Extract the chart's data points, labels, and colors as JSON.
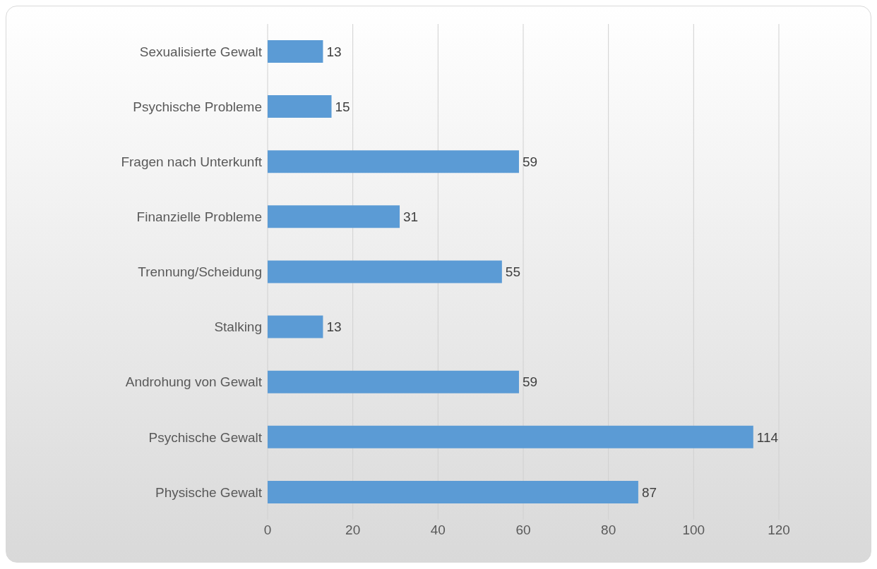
{
  "chart_data": {
    "type": "bar",
    "orientation": "horizontal",
    "categories": [
      "Sexualisierte Gewalt",
      "Psychische Probleme",
      "Fragen nach Unterkunft",
      "Finanzielle Probleme",
      "Trennung/Scheidung",
      "Stalking",
      "Androhung von Gewalt ",
      "Psychische Gewalt",
      "Physische Gewalt"
    ],
    "values": [
      13,
      15,
      59,
      31,
      55,
      13,
      59,
      114,
      87
    ],
    "color": "#5b9bd5",
    "xlim": [
      0,
      120
    ],
    "xticks": [
      0,
      20,
      40,
      60,
      80,
      100,
      120
    ],
    "grid": "x",
    "data_labels": true
  }
}
